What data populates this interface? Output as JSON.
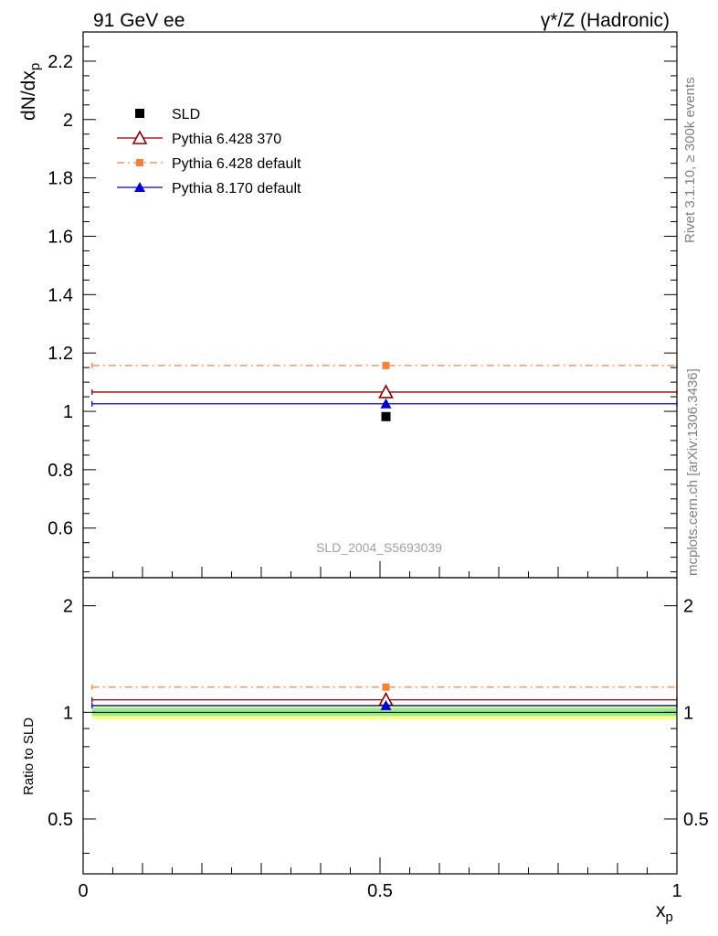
{
  "header": {
    "left_title": "91 GeV ee",
    "right_title": "γ*/Z (Hadronic)"
  },
  "side_labels": {
    "rivet": "Rivet 3.1.10, ≥ 300k events",
    "mcplots": "mcplots.cern.ch [arXiv:1306.3436]"
  },
  "watermark": "SLD_2004_S5693039",
  "chart_data": [
    {
      "type": "scatter",
      "panel": "main",
      "ylabel": "dN/dx",
      "ylabel_sub": "p",
      "xlim": [
        0,
        1
      ],
      "ylim": [
        0.43,
        2.3
      ],
      "yticks": [
        0.6,
        0.8,
        1,
        1.2,
        1.4,
        1.6,
        1.8,
        2,
        2.2
      ],
      "ytick_labels": [
        "0.6",
        "0.8",
        "1",
        "1.2",
        "1.4",
        "1.6",
        "1.8",
        "2",
        "2.2"
      ],
      "legend_position": "top-left",
      "series": [
        {
          "name": "SLD",
          "style": "data",
          "marker": "square",
          "color": "#000000",
          "x": 0.51,
          "y": 0.982,
          "xlow": 0.51,
          "xhigh": 0.51
        },
        {
          "name": "Pythia 6.428 370",
          "style": "solid",
          "marker": "triangle-open",
          "color": "#8b0000",
          "x": 0.51,
          "y": 1.066,
          "xlow": 0.015,
          "xhigh": 1.0
        },
        {
          "name": "Pythia 6.428 default",
          "style": "dashdot",
          "marker": "square-small",
          "color": "#f5823c",
          "x": 0.51,
          "y": 1.157,
          "xlow": 0.015,
          "xhigh": 1.0
        },
        {
          "name": "Pythia 8.170 default",
          "style": "solid",
          "marker": "triangle",
          "color": "#0000cd",
          "x": 0.51,
          "y": 1.026,
          "xlow": 0.015,
          "xhigh": 1.0
        }
      ]
    },
    {
      "type": "scatter",
      "panel": "ratio",
      "ylabel": "Ratio to SLD",
      "xlabel": "x",
      "xlabel_sub": "p",
      "xlim": [
        0,
        1
      ],
      "ylim": [
        0.35,
        2.4
      ],
      "scale": "log",
      "yticks": [
        0.5,
        1,
        2
      ],
      "ytick_labels": [
        "0.5",
        "1",
        "2"
      ],
      "xticks": [
        0,
        0.5,
        1
      ],
      "xtick_labels": [
        "0",
        "0.5",
        "1"
      ],
      "bands": [
        {
          "color": "#ffff80",
          "low": 0.955,
          "high": 1.05
        },
        {
          "color": "#90ee90",
          "low": 0.977,
          "high": 1.03
        }
      ],
      "series": [
        {
          "name": "Pythia 6.428 370",
          "style": "solid",
          "marker": "triangle-open",
          "color": "#8b0000",
          "x": 0.51,
          "y": 1.085,
          "xlow": 0.015,
          "xhigh": 1.0
        },
        {
          "name": "Pythia 6.428 default",
          "style": "dashdot",
          "marker": "square-small",
          "color": "#f5823c",
          "x": 0.51,
          "y": 1.178,
          "xlow": 0.015,
          "xhigh": 1.0
        },
        {
          "name": "Pythia 8.170 default",
          "style": "solid",
          "marker": "triangle",
          "color": "#0000cd",
          "x": 0.51,
          "y": 1.045,
          "xlow": 0.015,
          "xhigh": 1.0
        }
      ]
    }
  ]
}
